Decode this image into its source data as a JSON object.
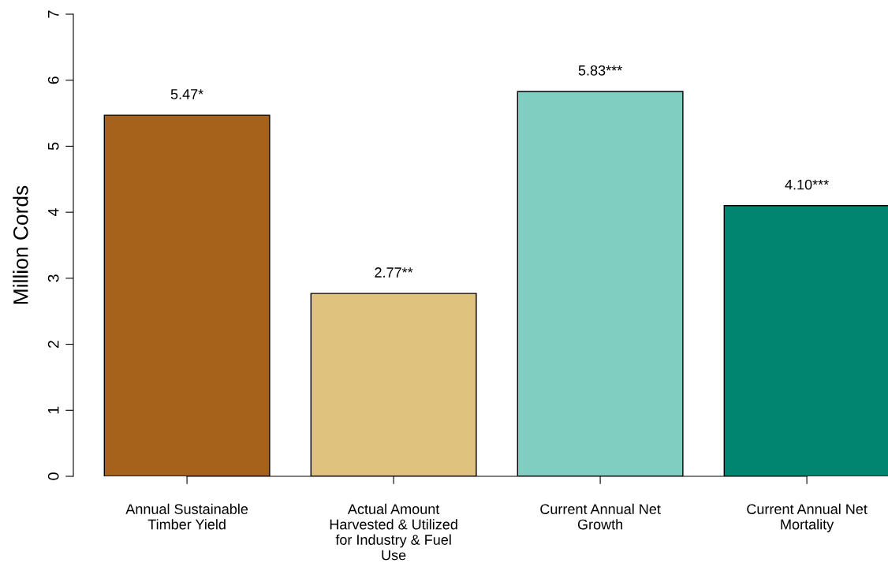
{
  "chart_data": {
    "type": "bar",
    "ylabel": "Million Cords",
    "categories": [
      "Annual Sustainable\nTimber Yield",
      "Actual Amount\nHarvested & Utilized\nfor Industry & Fuel\nUse",
      "Current Annual Net\nGrowth",
      "Current Annual Net\nMortality"
    ],
    "values": [
      5.47,
      2.77,
      5.83,
      4.1
    ],
    "value_labels": [
      "5.47*",
      "2.77**",
      "5.83***",
      "4.10***"
    ],
    "colors": [
      "#a6611a",
      "#dfc27d",
      "#80cdc1",
      "#018571"
    ],
    "ylim": [
      0,
      7
    ],
    "yticks": [
      0,
      1,
      2,
      3,
      4,
      5,
      6,
      7
    ],
    "grid": false,
    "legend": false
  }
}
